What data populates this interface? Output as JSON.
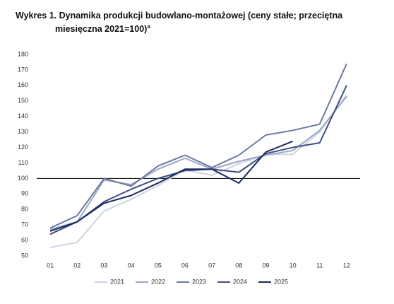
{
  "chart_data": {
    "type": "line",
    "title": "Wykres 1. Dynamika produkcji budowlano-montażowej (ceny stałe; przeciętna miesięczna 2021=100)",
    "title_superscript": "a",
    "categories": [
      "01",
      "02",
      "03",
      "04",
      "05",
      "06",
      "07",
      "08",
      "09",
      "10",
      "11",
      "12"
    ],
    "series": [
      {
        "name": "2021",
        "color": "#cdd3e2",
        "values": [
          55.5,
          58.7,
          79,
          86.5,
          95.5,
          105.5,
          102,
          109.5,
          115.5,
          115.5,
          130,
          154
        ]
      },
      {
        "name": "2022",
        "color": "#9ba7c7",
        "values": [
          67,
          72,
          99,
          96,
          106,
          113,
          106,
          111,
          115,
          118,
          131,
          153
        ]
      },
      {
        "name": "2023",
        "color": "#6b78a6",
        "values": [
          68,
          76,
          100,
          95,
          108,
          115,
          107,
          115,
          128,
          131,
          135,
          174
        ]
      },
      {
        "name": "2024",
        "color": "#3f4d85",
        "values": [
          64,
          72,
          85,
          93,
          100,
          105,
          106,
          104,
          116,
          120,
          123,
          160
        ]
      },
      {
        "name": "2025",
        "color": "#1a2a5e",
        "values": [
          66,
          72,
          84,
          89,
          97,
          106,
          106,
          97,
          117,
          124,
          null,
          null
        ]
      }
    ],
    "reference_line": 100,
    "ylim": [
      50,
      180
    ],
    "yticks": [
      50,
      60,
      70,
      80,
      90,
      100,
      110,
      120,
      130,
      140,
      150,
      160,
      170,
      180
    ],
    "legend": "bottom"
  }
}
